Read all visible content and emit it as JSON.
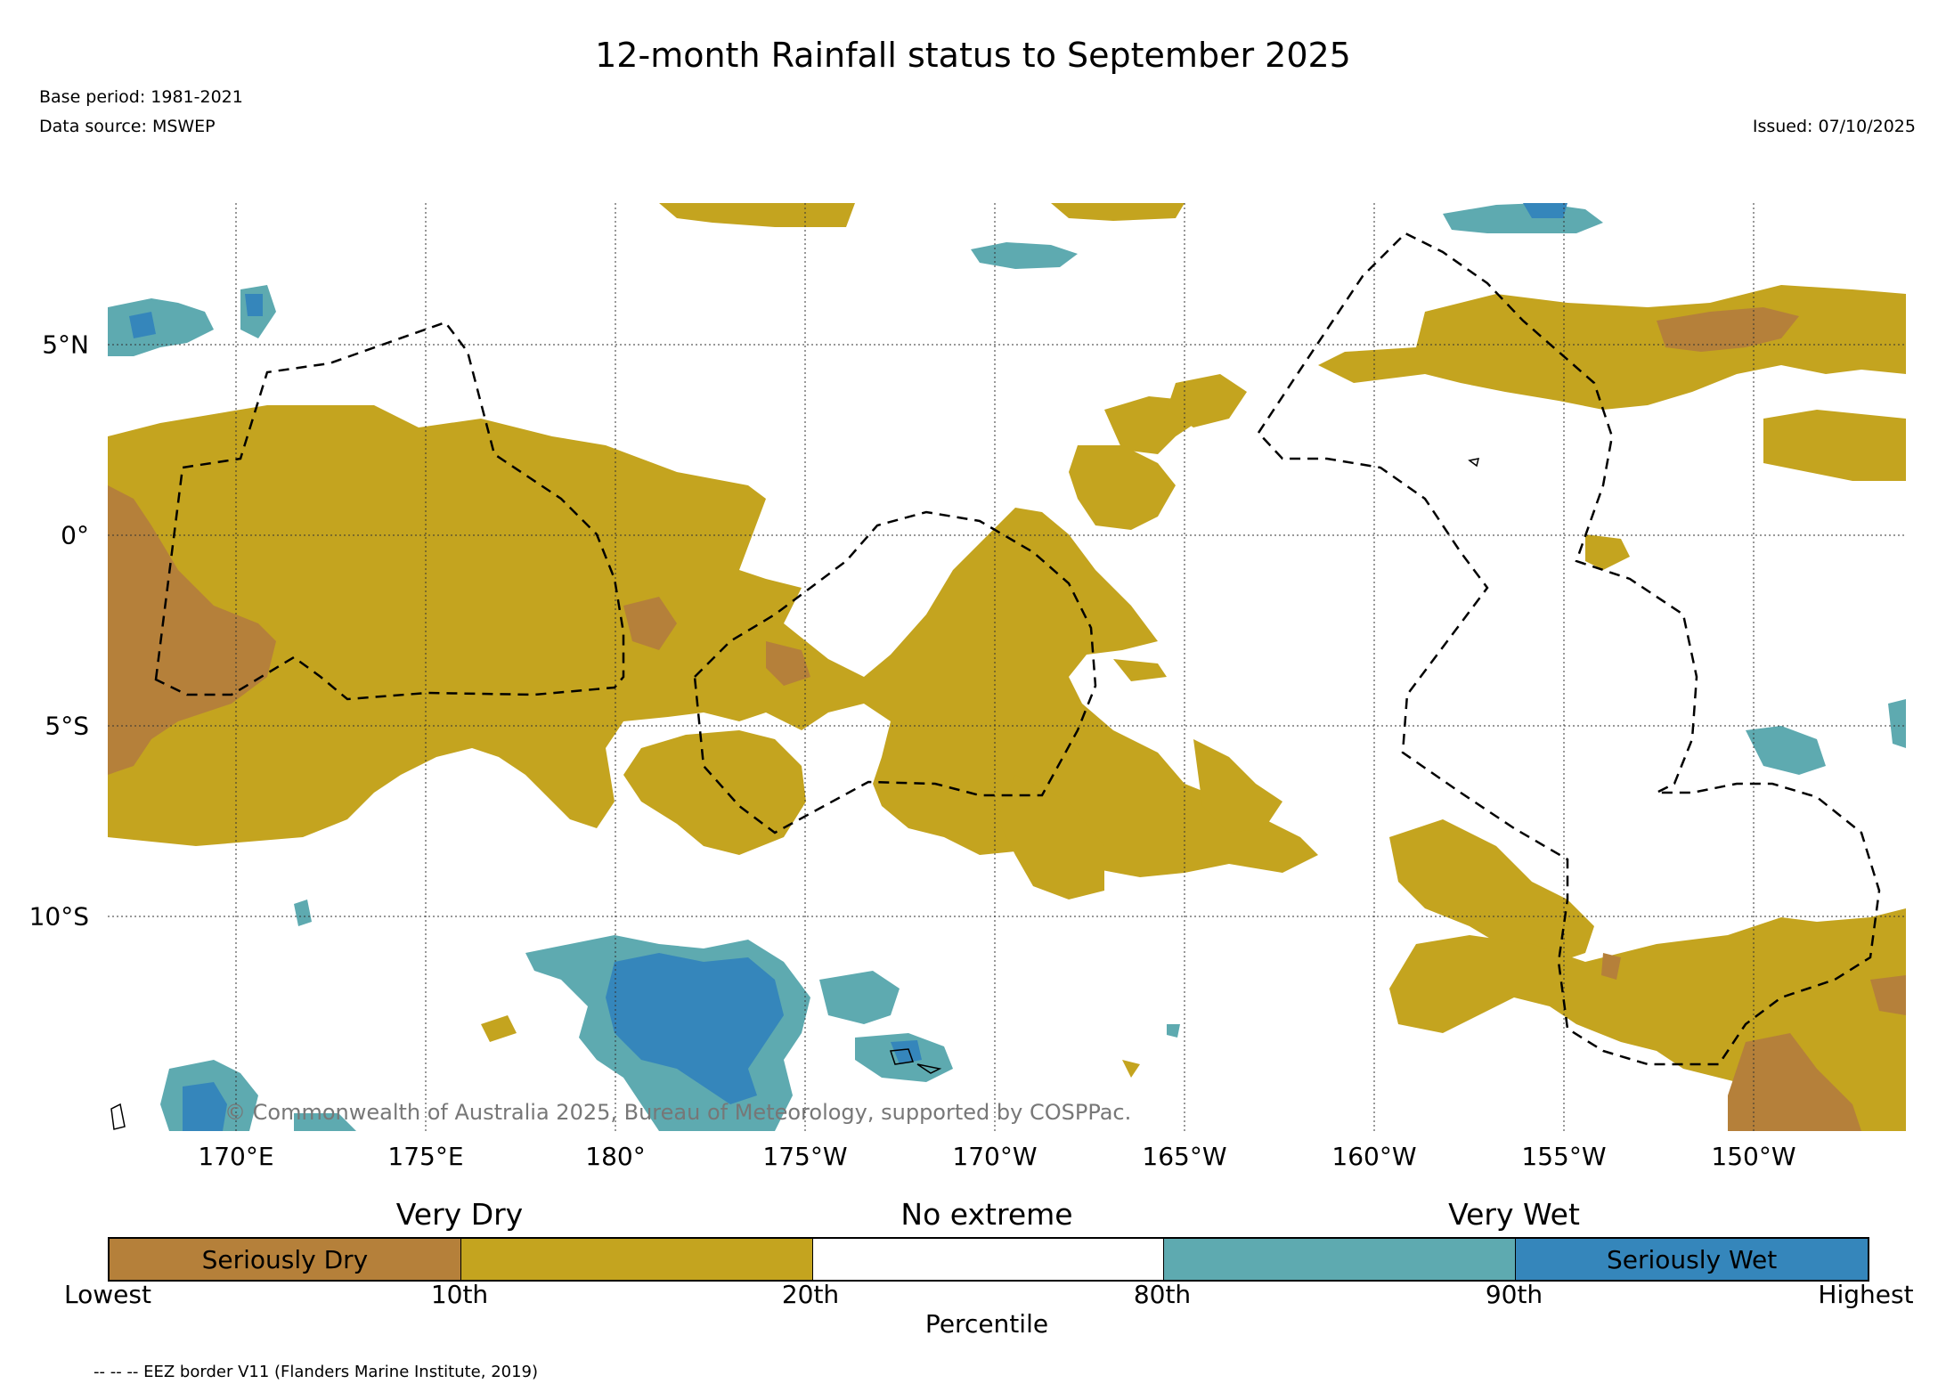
{
  "title": "12-month Rainfall status to September 2025",
  "base_period": "Base period: 1981-2021",
  "data_source": "Data source: MSWEP",
  "issued": "Issued: 07/10/2025",
  "lat_labels": [
    "5°N",
    "0°",
    "5°S",
    "10°S"
  ],
  "lon_labels": [
    "170°E",
    "175°E",
    "180°",
    "175°W",
    "170°W",
    "165°W",
    "160°W",
    "155°W",
    "150°W"
  ],
  "copyright": "© Commonwealth of Australia 2025, Bureau of Meteorology, supported by COSPPac.",
  "colors": {
    "seriously_dry": "#b5803a",
    "very_dry": "#c4a41f",
    "no_extreme": "#ffffff",
    "very_wet": "#5eaab0",
    "seriously_wet": "#3586bb"
  },
  "legend": {
    "categories": [
      "Very Dry",
      "No extreme",
      "Very Wet"
    ],
    "segments": [
      "Seriously Dry",
      "",
      "",
      "",
      "Seriously Wet"
    ],
    "ticks": [
      "Lowest",
      "10th",
      "20th",
      "80th",
      "90th",
      "Highest"
    ],
    "axis_label": "Percentile"
  },
  "footnote": "-- -- -- EEZ border V11 (Flanders Marine Institute, 2019)"
}
